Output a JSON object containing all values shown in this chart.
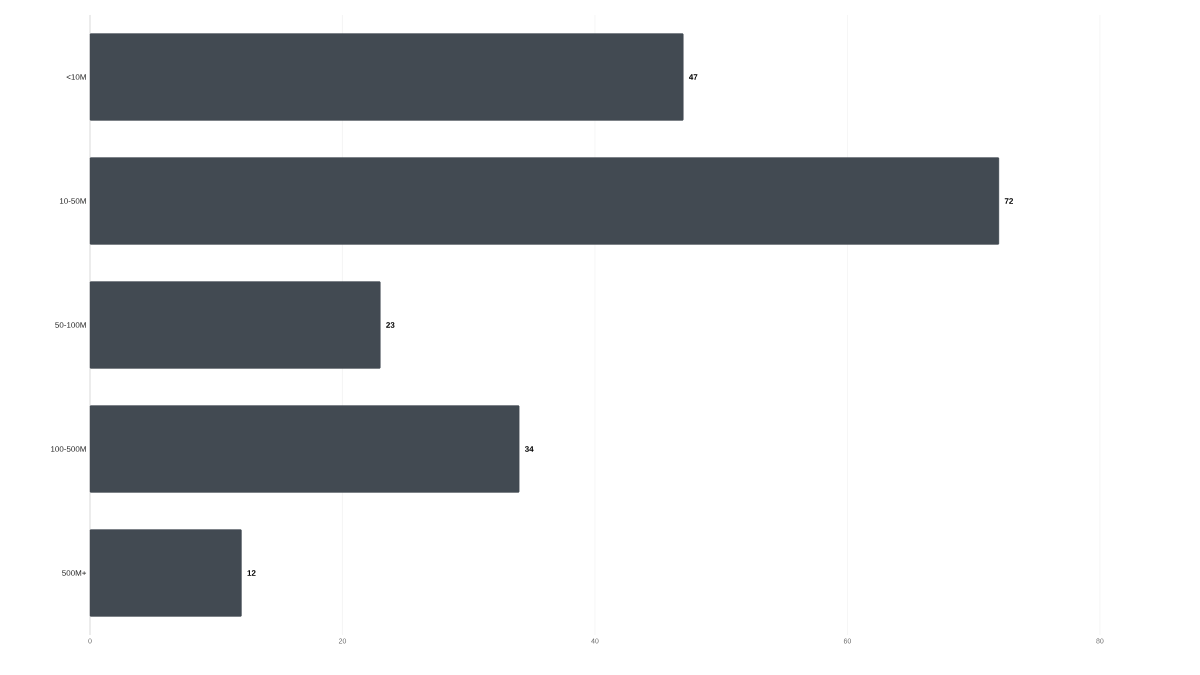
{
  "chart_data": {
    "type": "bar",
    "orientation": "horizontal",
    "categories": [
      "<10M",
      "10-50M",
      "50-100M",
      "100-500M",
      "500M+"
    ],
    "values": [
      47,
      72,
      23,
      34,
      12
    ],
    "color": "#424a52",
    "xlim": [
      0,
      80
    ],
    "xticks": [
      0,
      20,
      40,
      60,
      80
    ],
    "grid": "x",
    "data_labels": true
  }
}
